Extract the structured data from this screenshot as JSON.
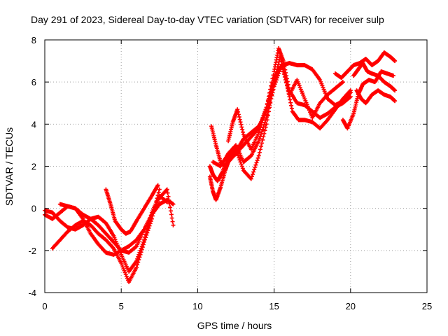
{
  "chart_data": {
    "type": "scatter",
    "title": "Day 291 of 2023, Sidereal Day-to-day VTEC variation (SDTVAR) for receiver sulp",
    "xlabel": "GPS time / hours",
    "ylabel": "SDTVAR / TECUs",
    "xlim": [
      0,
      25
    ],
    "ylim": [
      -4,
      8
    ],
    "x_ticks": [
      0,
      5,
      10,
      15,
      20,
      25
    ],
    "y_ticks": [
      -4,
      -2,
      0,
      2,
      4,
      6,
      8
    ],
    "x_tick_labels": [
      "0",
      "5",
      "10",
      "15",
      "20",
      "25"
    ],
    "y_tick_labels": [
      "-4",
      "-2",
      "0",
      "2",
      "4",
      "6",
      "8"
    ],
    "grid": true,
    "marker": "+",
    "color": "#ff0000",
    "series": [
      {
        "x": [
          0.0,
          0.5,
          1.0,
          1.5,
          2.0,
          2.5,
          3.0,
          3.5,
          4.0,
          4.5,
          5.0,
          5.5,
          6.0,
          6.5,
          7.0,
          7.5,
          8.0,
          8.4
        ],
        "y": [
          -0.3,
          -0.5,
          -0.2,
          0.1,
          0.0,
          -0.3,
          -0.5,
          -0.8,
          -1.2,
          -1.6,
          -2.0,
          -2.1,
          -1.8,
          -1.0,
          -0.3,
          0.2,
          0.4,
          0.2
        ]
      },
      {
        "x": [
          0.0,
          0.5,
          1.0,
          1.5,
          2.0,
          2.5,
          3.0,
          3.5,
          4.0,
          4.5,
          5.0,
          5.5,
          6.0,
          6.5,
          7.0,
          7.5,
          8.0
        ],
        "y": [
          -0.1,
          -0.2,
          -0.6,
          -0.9,
          -1.0,
          -0.8,
          -0.5,
          -0.4,
          -0.7,
          -1.3,
          -2.2,
          -3.0,
          -2.5,
          -1.5,
          -0.2,
          0.6,
          0.3
        ]
      },
      {
        "x": [
          0.5,
          1.0,
          1.5,
          2.0,
          2.5,
          3.0,
          3.5,
          4.0,
          4.5,
          5.0,
          5.5,
          6.0,
          6.5,
          7.0,
          7.5
        ],
        "y": [
          -1.9,
          -1.5,
          -1.1,
          -0.8,
          -0.6,
          -0.8,
          -1.2,
          -1.5,
          -1.9,
          -2.6,
          -3.5,
          -2.8,
          -1.6,
          -0.5,
          0.9
        ]
      },
      {
        "x": [
          1.0,
          1.5,
          2.0,
          2.5,
          3.0,
          3.5,
          4.0,
          4.5,
          5.0,
          5.5,
          6.0,
          6.5,
          7.0,
          7.5,
          8.0,
          8.4
        ],
        "y": [
          0.2,
          0.1,
          0.0,
          -0.5,
          -1.2,
          -1.7,
          -2.1,
          -2.2,
          -2.0,
          -1.8,
          -1.5,
          -1.0,
          -0.3,
          0.5,
          0.9,
          -0.8
        ]
      },
      {
        "x": [
          4.0,
          4.3,
          4.6,
          5.0,
          5.3,
          5.6,
          6.0,
          6.5,
          7.0,
          7.4
        ],
        "y": [
          0.9,
          0.2,
          -0.6,
          -1.0,
          -1.2,
          -1.1,
          -0.6,
          0.0,
          0.6,
          1.1
        ]
      },
      {
        "x": [
          10.8,
          11.0,
          11.2,
          11.5,
          11.8,
          12.0,
          12.5,
          13.0,
          13.5,
          14.0,
          14.5,
          15.0,
          15.3,
          15.6,
          16.0,
          16.5,
          17.0,
          17.5,
          18.0,
          18.5,
          19.0,
          19.5,
          20.0
        ],
        "y": [
          1.5,
          0.8,
          0.4,
          1.0,
          1.8,
          2.2,
          2.6,
          3.0,
          3.4,
          3.8,
          4.8,
          6.5,
          7.6,
          7.0,
          5.6,
          5.0,
          4.9,
          4.6,
          4.3,
          4.5,
          4.8,
          5.0,
          5.3
        ]
      },
      {
        "x": [
          10.8,
          11.0,
          11.3,
          11.6,
          12.0,
          12.5,
          13.0,
          13.5,
          14.0,
          14.5,
          15.0,
          15.4,
          15.8,
          16.2,
          16.6,
          17.0,
          17.5,
          18.0,
          18.5,
          19.0,
          19.5,
          20.0
        ],
        "y": [
          2.0,
          1.6,
          1.3,
          1.7,
          2.4,
          2.8,
          1.8,
          1.4,
          2.5,
          4.0,
          6.0,
          7.2,
          6.0,
          4.6,
          4.2,
          4.2,
          4.1,
          3.8,
          4.2,
          4.7,
          5.2,
          5.6
        ]
      },
      {
        "x": [
          11.0,
          11.5,
          12.0,
          12.5,
          13.0,
          13.5,
          14.0,
          14.5,
          15.0,
          15.5,
          16.0,
          16.5,
          17.0,
          17.5,
          18.0,
          18.5,
          19.0,
          19.5,
          20.0
        ],
        "y": [
          2.2,
          2.0,
          2.6,
          3.0,
          2.2,
          2.5,
          3.2,
          4.3,
          5.8,
          6.8,
          6.9,
          6.8,
          6.8,
          6.6,
          6.1,
          5.2,
          4.9,
          5.1,
          5.5
        ]
      },
      {
        "x": [
          12.0,
          12.3,
          12.6,
          13.0,
          13.5,
          14.0,
          14.5,
          15.0,
          15.5,
          16.0,
          16.5,
          17.0,
          17.5,
          18.0,
          18.5,
          19.0,
          19.5
        ],
        "y": [
          3.2,
          4.1,
          4.7,
          3.5,
          2.8,
          3.6,
          4.8,
          6.2,
          6.8,
          5.4,
          6.1,
          5.2,
          4.3,
          5.0,
          5.4,
          5.7,
          6.0
        ]
      },
      {
        "x": [
          10.9,
          11.2,
          11.5,
          11.8,
          12.2,
          12.6,
          13.0,
          13.5,
          14.0,
          14.5,
          15.0
        ],
        "y": [
          3.9,
          3.0,
          2.2,
          2.0,
          2.4,
          2.8,
          3.3,
          3.6,
          3.9,
          4.6,
          5.9
        ]
      },
      {
        "x": [
          19.5,
          19.8,
          20.2,
          20.5,
          20.8,
          21.2,
          21.6,
          22.0,
          22.4,
          22.8
        ],
        "y": [
          4.2,
          3.8,
          4.5,
          5.4,
          5.9,
          6.1,
          6.0,
          6.5,
          6.4,
          6.3
        ]
      },
      {
        "x": [
          19.0,
          19.4,
          19.8,
          20.2,
          20.6,
          21.0,
          21.4,
          21.8,
          22.2,
          22.6,
          22.9
        ],
        "y": [
          6.4,
          6.2,
          6.5,
          6.8,
          6.9,
          7.1,
          6.8,
          7.0,
          7.4,
          7.2,
          7.0
        ]
      },
      {
        "x": [
          20.2,
          20.5,
          20.8,
          21.1,
          21.4,
          21.8,
          22.2,
          22.6,
          22.9
        ],
        "y": [
          6.3,
          6.6,
          6.9,
          6.5,
          6.4,
          6.3,
          6.0,
          5.8,
          5.6
        ]
      },
      {
        "x": [
          20.4,
          20.7,
          21.0,
          21.4,
          21.8,
          22.2,
          22.6,
          22.9
        ],
        "y": [
          5.6,
          5.2,
          5.0,
          5.4,
          5.6,
          5.4,
          5.3,
          5.1
        ]
      }
    ]
  }
}
